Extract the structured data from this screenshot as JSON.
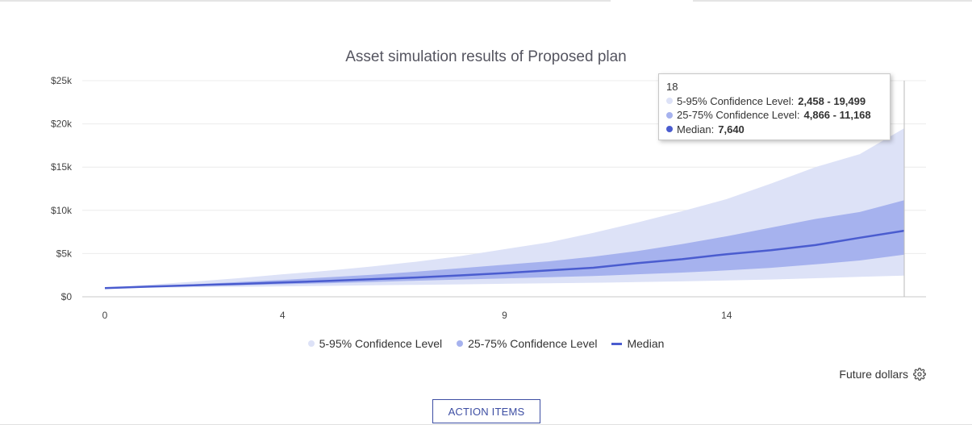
{
  "chart_data": {
    "type": "area",
    "title": "Asset simulation results of Proposed plan",
    "xlabel": "",
    "ylabel": "",
    "x": [
      0,
      1,
      2,
      3,
      4,
      5,
      6,
      7,
      8,
      9,
      10,
      11,
      12,
      13,
      14,
      15,
      16,
      17,
      18
    ],
    "x_ticks": [
      0,
      4,
      9,
      14
    ],
    "x_range": [
      0,
      18
    ],
    "y_ticks": [
      0,
      5000,
      10000,
      15000,
      20000,
      25000
    ],
    "y_tick_labels": [
      "$0",
      "$5k",
      "$10k",
      "$15k",
      "$20k",
      "$25k"
    ],
    "ylim": [
      0,
      25000
    ],
    "grid": true,
    "legend_position": "bottom",
    "series": [
      {
        "name": "5-95% Confidence Level",
        "type": "range",
        "color": "#dde2f7",
        "low": [
          1000,
          1050,
          1100,
          1150,
          1200,
          1260,
          1320,
          1380,
          1440,
          1500,
          1560,
          1620,
          1700,
          1780,
          1880,
          2000,
          2150,
          2300,
          2458
        ],
        "high": [
          1000,
          1400,
          1750,
          2150,
          2600,
          3000,
          3500,
          4050,
          4700,
          5500,
          6300,
          7400,
          8600,
          9900,
          11300,
          13100,
          15000,
          16500,
          19499
        ]
      },
      {
        "name": "25-75% Confidence Level",
        "type": "range",
        "color": "#a6b2ee",
        "low": [
          1000,
          1120,
          1220,
          1330,
          1450,
          1570,
          1710,
          1860,
          2000,
          2130,
          2260,
          2400,
          2600,
          2800,
          3050,
          3350,
          3750,
          4200,
          4866
        ],
        "high": [
          1000,
          1250,
          1450,
          1700,
          1950,
          2250,
          2550,
          2900,
          3300,
          3700,
          4100,
          4650,
          5300,
          6100,
          7000,
          8000,
          9000,
          9800,
          11168
        ]
      },
      {
        "name": "Median",
        "type": "line",
        "color": "#4a5ccf",
        "values": [
          1000,
          1180,
          1330,
          1480,
          1650,
          1830,
          2020,
          2230,
          2470,
          2740,
          3060,
          3360,
          3900,
          4350,
          4930,
          5380,
          5980,
          6830,
          7640
        ]
      }
    ],
    "tooltip": {
      "x": "18",
      "rows": [
        {
          "label": "5-95% Confidence Level:",
          "value": "2,458 - 19,499",
          "color": "#dde2f7"
        },
        {
          "label": "25-75% Confidence Level:",
          "value": "4,866 - 11,168",
          "color": "#a6b2ee"
        },
        {
          "label": "Median:",
          "value": "7,640",
          "color": "#4a5ccf"
        }
      ]
    }
  },
  "footer": {
    "currency_mode": "Future dollars",
    "action_label": "ACTION ITEMS"
  }
}
